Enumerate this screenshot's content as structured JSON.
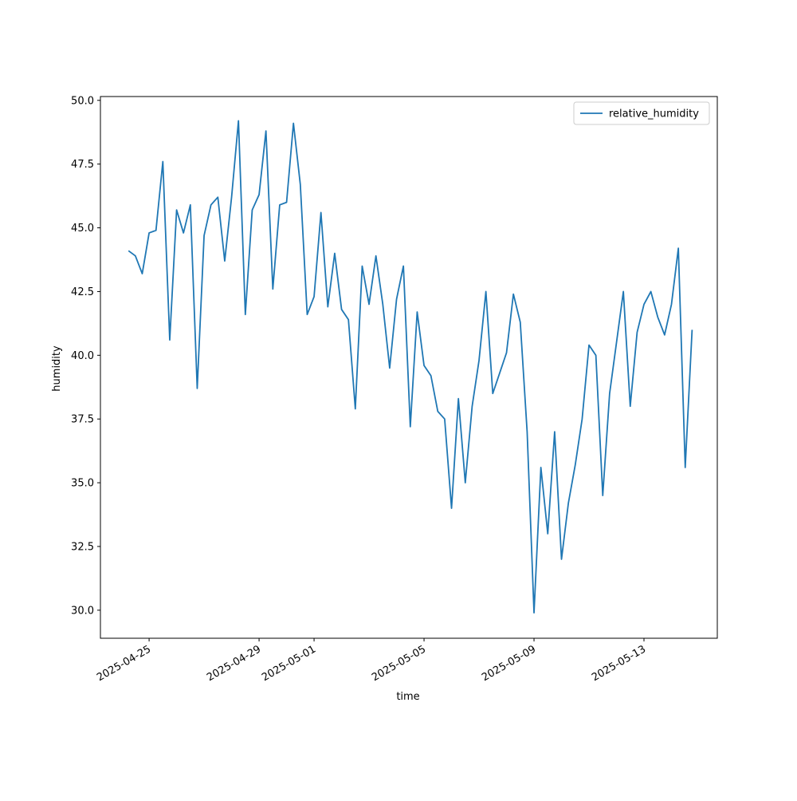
{
  "chart_data": {
    "type": "line",
    "x_label": "time",
    "y_label": "humidity",
    "x": [
      "2025-04-24T06:00",
      "2025-04-24T12:00",
      "2025-04-24T18:00",
      "2025-04-25T00:00",
      "2025-04-25T06:00",
      "2025-04-25T12:00",
      "2025-04-25T18:00",
      "2025-04-26T00:00",
      "2025-04-26T06:00",
      "2025-04-26T12:00",
      "2025-04-26T18:00",
      "2025-04-27T00:00",
      "2025-04-27T06:00",
      "2025-04-27T12:00",
      "2025-04-27T18:00",
      "2025-04-28T00:00",
      "2025-04-28T06:00",
      "2025-04-28T12:00",
      "2025-04-28T18:00",
      "2025-04-29T00:00",
      "2025-04-29T06:00",
      "2025-04-29T12:00",
      "2025-04-29T18:00",
      "2025-04-30T00:00",
      "2025-04-30T06:00",
      "2025-04-30T12:00",
      "2025-04-30T18:00",
      "2025-05-01T00:00",
      "2025-05-01T06:00",
      "2025-05-01T12:00",
      "2025-05-01T18:00",
      "2025-05-02T00:00",
      "2025-05-02T06:00",
      "2025-05-02T12:00",
      "2025-05-02T18:00",
      "2025-05-03T00:00",
      "2025-05-03T06:00",
      "2025-05-03T12:00",
      "2025-05-03T18:00",
      "2025-05-04T00:00",
      "2025-05-04T06:00",
      "2025-05-04T12:00",
      "2025-05-04T18:00",
      "2025-05-05T00:00",
      "2025-05-05T06:00",
      "2025-05-05T12:00",
      "2025-05-05T18:00",
      "2025-05-06T00:00",
      "2025-05-06T06:00",
      "2025-05-06T12:00",
      "2025-05-06T18:00",
      "2025-05-07T00:00",
      "2025-05-07T06:00",
      "2025-05-07T12:00",
      "2025-05-07T18:00",
      "2025-05-08T00:00",
      "2025-05-08T06:00",
      "2025-05-08T12:00",
      "2025-05-08T18:00",
      "2025-05-09T00:00",
      "2025-05-09T06:00",
      "2025-05-09T12:00",
      "2025-05-09T18:00",
      "2025-05-10T00:00",
      "2025-05-10T06:00",
      "2025-05-10T12:00",
      "2025-05-10T18:00",
      "2025-05-11T00:00",
      "2025-05-11T06:00",
      "2025-05-11T12:00",
      "2025-05-11T18:00",
      "2025-05-12T00:00",
      "2025-05-12T06:00",
      "2025-05-12T12:00",
      "2025-05-12T18:00",
      "2025-05-13T00:00",
      "2025-05-13T06:00",
      "2025-05-13T12:00",
      "2025-05-13T18:00",
      "2025-05-14T00:00",
      "2025-05-14T06:00",
      "2025-05-14T12:00",
      "2025-05-14T18:00"
    ],
    "series": [
      {
        "name": "relative_humidity",
        "color": "#1f77b4",
        "values": [
          44.1,
          43.9,
          43.2,
          44.8,
          44.9,
          47.6,
          40.6,
          45.7,
          44.8,
          45.9,
          38.7,
          44.7,
          45.9,
          46.2,
          43.7,
          46.2,
          49.2,
          41.6,
          45.7,
          46.3,
          48.8,
          42.6,
          45.9,
          46.0,
          49.1,
          46.7,
          41.6,
          42.3,
          45.6,
          41.9,
          44.0,
          41.8,
          41.4,
          37.9,
          43.5,
          42.0,
          43.9,
          42.0,
          39.5,
          42.2,
          43.5,
          37.2,
          41.7,
          39.6,
          39.2,
          37.8,
          37.5,
          34.0,
          38.3,
          35.0,
          38.0,
          39.8,
          42.5,
          38.5,
          39.3,
          40.1,
          42.4,
          41.3,
          37.0,
          29.9,
          35.6,
          33.0,
          37.0,
          32.0,
          34.2,
          35.7,
          37.5,
          40.4,
          40.0,
          34.5,
          38.5,
          40.5,
          42.5,
          38.0,
          40.9,
          42.0,
          42.5,
          41.5,
          40.8,
          42.0,
          44.2,
          35.6,
          41.0
        ]
      }
    ],
    "xlim": [
      "2025-04-23T05:30",
      "2025-05-15T16:00"
    ],
    "xticks": [
      "2025-04-25",
      "2025-04-29",
      "2025-05-01",
      "2025-05-05",
      "2025-05-09",
      "2025-05-13"
    ],
    "ylim": [
      28.9,
      50.15
    ],
    "yticks": [
      {
        "value": 30,
        "label": "30.0"
      },
      32.5,
      {
        "value": 35,
        "label": "35.0"
      },
      37.5,
      {
        "value": 40,
        "label": "40.0"
      },
      42.5,
      {
        "value": 45,
        "label": "45.0"
      },
      47.5,
      {
        "value": 50,
        "label": "50.0"
      }
    ],
    "legend": "upper right"
  }
}
